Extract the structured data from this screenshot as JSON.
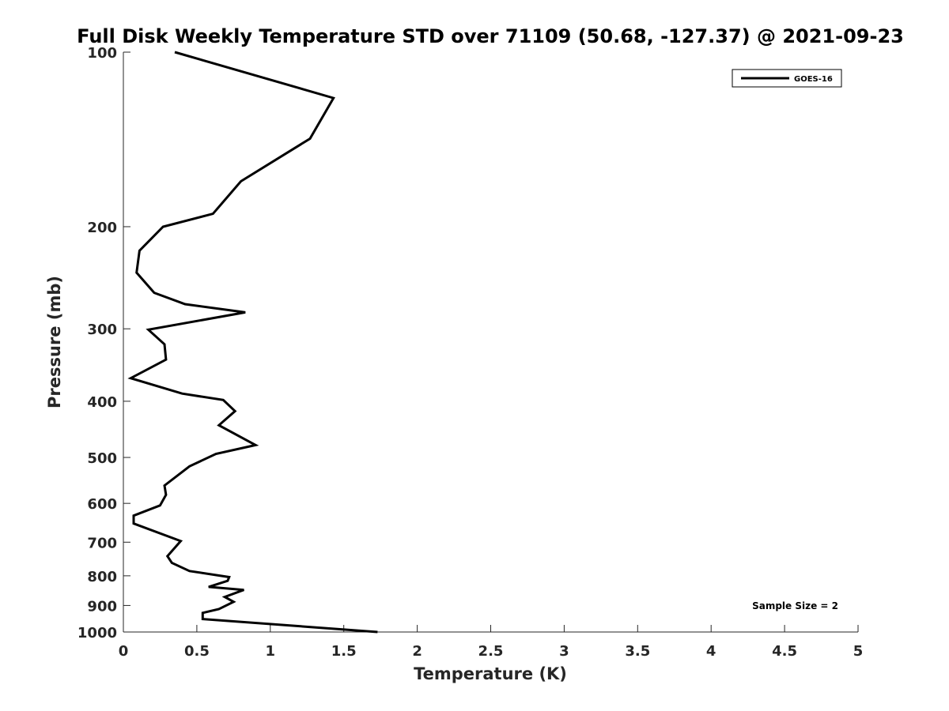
{
  "chart_data": {
    "type": "line",
    "title": "Full Disk Weekly Temperature STD over 71109 (50.68, -127.37) @ 2021-09-23",
    "xlabel": "Temperature (K)",
    "ylabel": "Pressure (mb)",
    "xlim": [
      0,
      5
    ],
    "ylim": [
      100,
      1000
    ],
    "yscale": "log",
    "yreversed": true,
    "xticks": [
      0,
      0.5,
      1,
      1.5,
      2,
      2.5,
      3,
      3.5,
      4,
      4.5,
      5
    ],
    "xtick_labels": [
      "0",
      "0.5",
      "1",
      "1.5",
      "2",
      "2.5",
      "3",
      "3.5",
      "4",
      "4.5",
      "5"
    ],
    "yticks": [
      100,
      200,
      300,
      400,
      500,
      600,
      700,
      800,
      900,
      1000
    ],
    "ytick_labels": [
      "100",
      "200",
      "300",
      "400",
      "500",
      "600",
      "700",
      "800",
      "900",
      "1000"
    ],
    "grid": false,
    "legend_position": "top-right",
    "annotation": "Sample Size = 2",
    "series": [
      {
        "name": "GOES-16",
        "color": "#000000",
        "points": [
          [
            0.35,
            100
          ],
          [
            1.43,
            120
          ],
          [
            1.27,
            141
          ],
          [
            0.8,
            167
          ],
          [
            0.61,
            190
          ],
          [
            0.27,
            200
          ],
          [
            0.11,
            220
          ],
          [
            0.09,
            240
          ],
          [
            0.21,
            260
          ],
          [
            0.42,
            272
          ],
          [
            0.83,
            281
          ],
          [
            0.17,
            301
          ],
          [
            0.28,
            319
          ],
          [
            0.29,
            339
          ],
          [
            0.05,
            365
          ],
          [
            0.4,
            388
          ],
          [
            0.68,
            398
          ],
          [
            0.76,
            416
          ],
          [
            0.65,
            440
          ],
          [
            0.9,
            476
          ],
          [
            0.63,
            493
          ],
          [
            0.45,
            518
          ],
          [
            0.28,
            559
          ],
          [
            0.29,
            580
          ],
          [
            0.25,
            605
          ],
          [
            0.07,
            630
          ],
          [
            0.07,
            650
          ],
          [
            0.39,
            697
          ],
          [
            0.3,
            740
          ],
          [
            0.33,
            760
          ],
          [
            0.45,
            785
          ],
          [
            0.72,
            804
          ],
          [
            0.71,
            816
          ],
          [
            0.58,
            836
          ],
          [
            0.82,
            846
          ],
          [
            0.69,
            870
          ],
          [
            0.75,
            887
          ],
          [
            0.65,
            913
          ],
          [
            0.54,
            927
          ],
          [
            0.54,
            950
          ],
          [
            1.73,
            1000
          ]
        ]
      }
    ]
  }
}
